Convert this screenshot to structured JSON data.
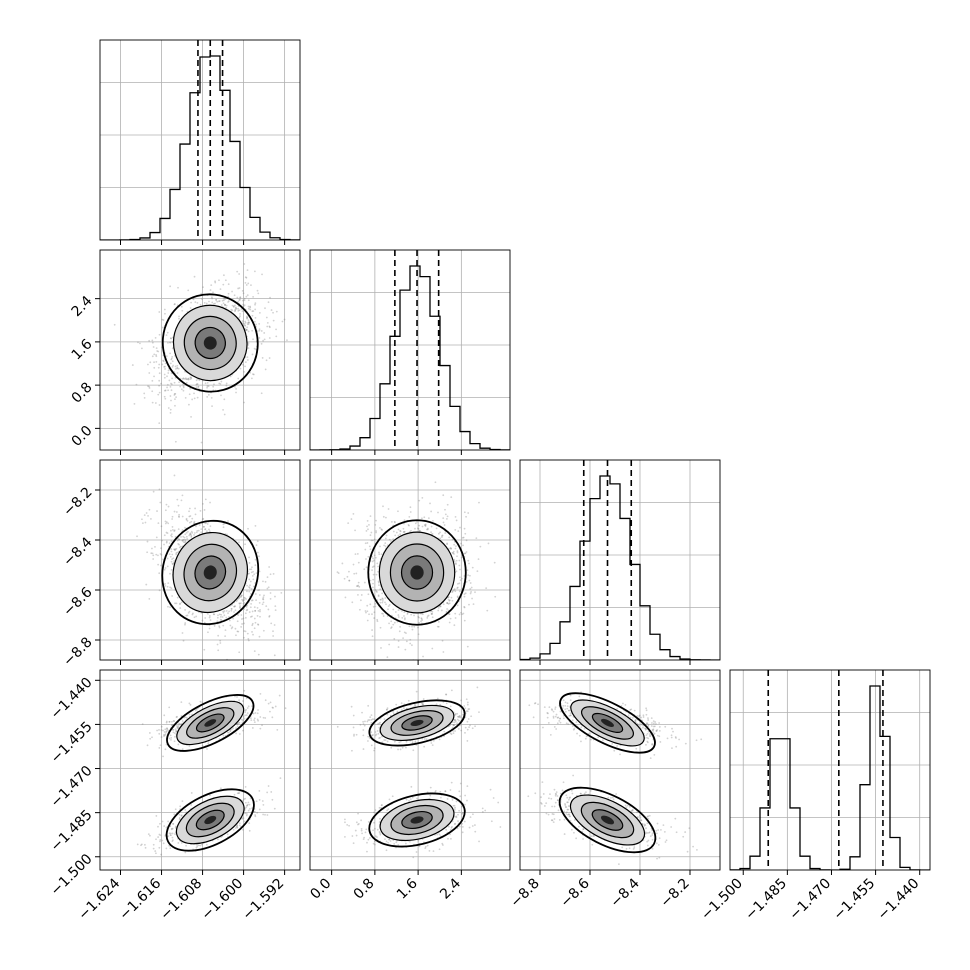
{
  "chart_data": {
    "type": "corner",
    "grid": true,
    "colors": {
      "hist": "#000000",
      "contour": "#000000",
      "points": "#7f7f7f",
      "density": [
        "#ffffff",
        "#000000"
      ]
    },
    "parameters": [
      {
        "range": [
          -1.628,
          -1.589
        ],
        "ticks": [
          "-1.624",
          "-1.616",
          "-1.608",
          "-1.600",
          "-1.592"
        ],
        "tick_values": [
          -1.624,
          -1.616,
          -1.608,
          -1.6,
          -1.592
        ],
        "mean": -1.6065,
        "sd": 0.0042,
        "quantiles": [
          -1.6089,
          -1.6065,
          -1.6041
        ]
      },
      {
        "range": [
          -0.4,
          3.3
        ],
        "ticks": [
          "0.0",
          "0.8",
          "1.6",
          "2.4"
        ],
        "tick_values": [
          0.0,
          0.8,
          1.6,
          2.4
        ],
        "mean": 1.58,
        "sd": 0.41,
        "quantiles": [
          1.17,
          1.58,
          1.98
        ]
      },
      {
        "range": [
          -8.88,
          -8.08
        ],
        "ticks": [
          "-8.8",
          "-8.6",
          "-8.4",
          "-8.2"
        ],
        "tick_values": [
          -8.8,
          -8.6,
          -8.4,
          -8.2
        ],
        "mean": -8.53,
        "sd": 0.095,
        "quantiles": [
          -8.625,
          -8.53,
          -8.435
        ]
      },
      {
        "range": [
          -1.5045,
          -1.4365
        ],
        "ticks": [
          "-1.500",
          "-1.485",
          "-1.470",
          "-1.455",
          "-1.440"
        ],
        "tick_values": [
          -1.5,
          -1.485,
          -1.47,
          -1.455,
          -1.44
        ],
        "modes": [
          {
            "mean": -1.4875,
            "sd": 0.0038,
            "weight": 0.48
          },
          {
            "mean": -1.4545,
            "sd": 0.0031,
            "weight": 0.52
          }
        ],
        "quantiles": [
          -1.4915,
          -1.4675,
          -1.4525
        ]
      }
    ]
  }
}
